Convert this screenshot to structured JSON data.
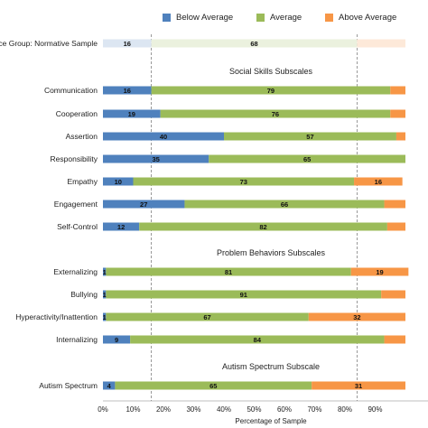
{
  "chart_data": {
    "type": "bar",
    "orientation": "horizontal",
    "stacked": true,
    "xlabel": "Percentage of Sample",
    "xlim": [
      0,
      100
    ],
    "x_ticks": [
      "0%",
      "10%",
      "20%",
      "30%",
      "40%",
      "50%",
      "60%",
      "70%",
      "80%",
      "90%"
    ],
    "reference_lines": [
      16,
      84
    ],
    "legend": {
      "placement": "top",
      "entries": [
        "Below Average",
        "Average",
        "Above Average"
      ]
    },
    "colors": {
      "below": "#4f81bd",
      "average": "#9bbb59",
      "above": "#f79646",
      "below_light": "#dce6f2",
      "average_light": "#ebf1de",
      "above_light": "#fde9d9"
    },
    "reference_row": {
      "label": "ce Group: Normative Sample",
      "values": [
        16,
        68,
        16
      ],
      "value_labels": [
        "16",
        "68",
        ""
      ]
    },
    "groups": [
      {
        "title": "Social Skills Subscales",
        "rows": [
          {
            "label": "Communication",
            "values": [
              16,
              79,
              5
            ],
            "value_labels": [
              "16",
              "79",
              ""
            ]
          },
          {
            "label": "Cooperation",
            "values": [
              19,
              76,
              5
            ],
            "value_labels": [
              "19",
              "76",
              ""
            ]
          },
          {
            "label": "Assertion",
            "values": [
              40,
              57,
              3
            ],
            "value_labels": [
              "40",
              "57",
              ""
            ]
          },
          {
            "label": "Responsibility",
            "values": [
              35,
              65,
              0
            ],
            "value_labels": [
              "35",
              "65",
              ""
            ]
          },
          {
            "label": "Empathy",
            "values": [
              10,
              73,
              16
            ],
            "value_labels": [
              "10",
              "73",
              "16"
            ]
          },
          {
            "label": "Engagement",
            "values": [
              27,
              66,
              7
            ],
            "value_labels": [
              "27",
              "66",
              ""
            ]
          },
          {
            "label": "Self-Control",
            "values": [
              12,
              82,
              6
            ],
            "value_labels": [
              "12",
              "82",
              ""
            ]
          }
        ]
      },
      {
        "title": "Problem Behaviors Subscales",
        "rows": [
          {
            "label": "Externalizing",
            "values": [
              1,
              81,
              19
            ],
            "value_labels": [
              "1",
              "81",
              "19"
            ]
          },
          {
            "label": "Bullying",
            "values": [
              1,
              91,
              8
            ],
            "value_labels": [
              "1",
              "91",
              ""
            ]
          },
          {
            "label": "Hyperactivity/Inattention",
            "values": [
              1,
              67,
              32
            ],
            "value_labels": [
              "1",
              "67",
              "32"
            ]
          },
          {
            "label": "Internalizing",
            "values": [
              9,
              84,
              7
            ],
            "value_labels": [
              "9",
              "84",
              ""
            ]
          }
        ]
      },
      {
        "title": "Autism Spectrum Subscale",
        "rows": [
          {
            "label": "Autism Spectrum",
            "values": [
              4,
              65,
              31
            ],
            "value_labels": [
              "4",
              "65",
              "31"
            ]
          }
        ]
      }
    ]
  }
}
